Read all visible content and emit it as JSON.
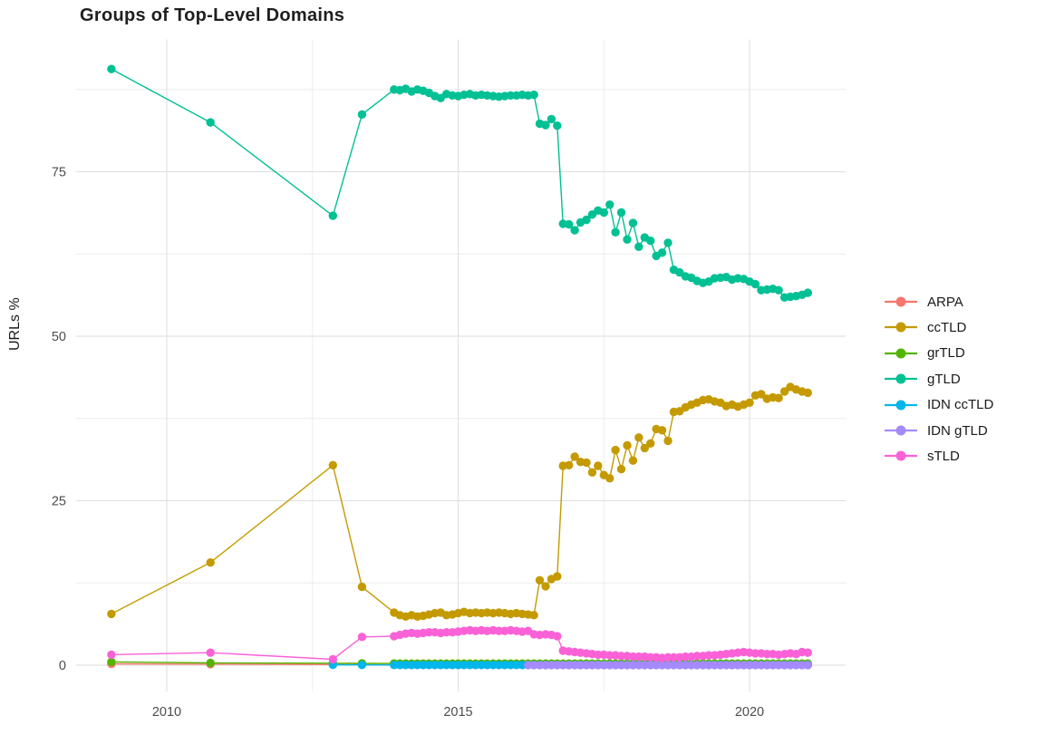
{
  "chart_data": {
    "type": "line",
    "title": "Groups of Top-Level Domains",
    "xlabel": "",
    "ylabel": "URLs %",
    "x_ticks": [
      2010,
      2015,
      2020
    ],
    "x_minor_gridlines": [
      2012.5,
      2017.5
    ],
    "y_ticks": [
      0,
      25,
      50,
      75
    ],
    "y_minor_gridlines": [
      12.5,
      37.5,
      62.5,
      87.5
    ],
    "xlim": [
      2008.45,
      2021.65
    ],
    "ylim": [
      -4.5,
      95.1
    ],
    "grid": true,
    "legend_position": "right",
    "grid_major_color": "#e2e2e2",
    "grid_minor_color": "#ececec",
    "x_dense": [
      2014.0,
      2014.1,
      2014.2,
      2014.3,
      2014.4,
      2014.5,
      2014.6,
      2014.7,
      2014.8,
      2014.9,
      2015.0,
      2015.1,
      2015.2,
      2015.3,
      2015.4,
      2015.5,
      2015.6,
      2015.7,
      2015.8,
      2015.9,
      2016.0,
      2016.1,
      2016.2,
      2016.3,
      2016.4,
      2016.5,
      2016.6,
      2016.7,
      2016.8,
      2016.9,
      2017.0,
      2017.1,
      2017.2,
      2017.3,
      2017.4,
      2017.5,
      2017.6,
      2017.7,
      2017.8,
      2017.9,
      2018.0,
      2018.1,
      2018.2,
      2018.3,
      2018.4,
      2018.5,
      2018.6,
      2018.7,
      2018.8,
      2018.9,
      2019.0,
      2019.1,
      2019.2,
      2019.3,
      2019.4,
      2019.5,
      2019.6,
      2019.7,
      2019.8,
      2019.9,
      2020.0,
      2020.1,
      2020.2,
      2020.3,
      2020.4,
      2020.5,
      2020.6,
      2020.7,
      2020.8,
      2020.9,
      2021.0
    ],
    "series": [
      {
        "name": "ARPA",
        "color": "#F8766D",
        "x_early": [
          2009.05,
          2010.75,
          2012.85
        ],
        "y_early": [
          0.2,
          0.15,
          0.1
        ],
        "dense_start": 0,
        "y_const": 0.05
      },
      {
        "name": "ccTLD",
        "color": "#C49A00",
        "x_early": [
          2009.05,
          2010.75,
          2012.85,
          2013.35,
          2013.9
        ],
        "y_early": [
          7.8,
          15.6,
          30.4,
          11.9,
          8.0
        ],
        "dense_start": 0,
        "y_dense": [
          7.6,
          7.4,
          7.6,
          7.4,
          7.5,
          7.7,
          7.9,
          8.0,
          7.6,
          7.7,
          7.9,
          8.1,
          7.9,
          8.0,
          7.9,
          8.0,
          7.9,
          8.0,
          7.9,
          7.8,
          7.9,
          7.8,
          7.7,
          7.6,
          12.9,
          12.0,
          13.1,
          13.5,
          30.3,
          30.4,
          31.7,
          30.9,
          30.8,
          29.3,
          30.3,
          28.9,
          28.4,
          32.7,
          29.8,
          33.4,
          31.1,
          34.6,
          33.0,
          33.7,
          35.9,
          35.7,
          34.1,
          38.5,
          38.6,
          39.2,
          39.6,
          39.9,
          40.3,
          40.4,
          40.1,
          39.9,
          39.4,
          39.6,
          39.3,
          39.6,
          39.9,
          41.0,
          41.2,
          40.5,
          40.7,
          40.6,
          41.6,
          42.3,
          41.9,
          41.6,
          41.4
        ]
      },
      {
        "name": "grTLD",
        "color": "#53B400",
        "x_early": [
          2009.05,
          2010.75,
          2012.85,
          2013.35,
          2013.9
        ],
        "y_early": [
          0.5,
          0.35,
          0.3,
          0.28,
          0.26
        ],
        "dense_start": 0,
        "y_const": 0.25
      },
      {
        "name": "gTLD",
        "color": "#00C094",
        "x_early": [
          2009.05,
          2010.75,
          2012.85,
          2013.35,
          2013.9
        ],
        "y_early": [
          90.6,
          82.5,
          68.3,
          83.7,
          87.5
        ],
        "dense_start": 0,
        "y_dense": [
          87.4,
          87.6,
          87.2,
          87.5,
          87.3,
          87.0,
          86.5,
          86.2,
          86.8,
          86.6,
          86.5,
          86.7,
          86.8,
          86.6,
          86.7,
          86.6,
          86.5,
          86.4,
          86.5,
          86.6,
          86.6,
          86.7,
          86.6,
          86.7,
          82.3,
          82.1,
          83.0,
          82.0,
          67.1,
          67.0,
          66.1,
          67.3,
          67.7,
          68.5,
          69.1,
          68.8,
          70.0,
          65.8,
          68.8,
          64.7,
          67.2,
          63.6,
          65.0,
          64.5,
          62.2,
          62.7,
          64.2,
          60.1,
          59.7,
          59.1,
          58.9,
          58.4,
          58.1,
          58.3,
          58.8,
          58.9,
          59.0,
          58.6,
          58.8,
          58.7,
          58.3,
          57.9,
          57.0,
          57.1,
          57.2,
          57.0,
          55.9,
          56.0,
          56.1,
          56.3,
          56.6
        ]
      },
      {
        "name": "IDN ccTLD",
        "color": "#00B6EB",
        "x_early": [
          2012.85,
          2013.35,
          2013.9
        ],
        "y_early": [
          0.05,
          0.04,
          0.03
        ],
        "dense_start": 0,
        "y_const": 0.03
      },
      {
        "name": "IDN gTLD",
        "color": "#A58AFF",
        "x_early": [],
        "y_early": [],
        "dense_start": 22,
        "y_const": 0.02
      },
      {
        "name": "sTLD",
        "color": "#FB61D7",
        "x_early": [
          2009.05,
          2010.75,
          2012.85,
          2013.35,
          2013.9
        ],
        "y_early": [
          1.6,
          1.9,
          0.9,
          4.3,
          4.4
        ],
        "dense_start": 0,
        "y_dense": [
          4.6,
          4.8,
          4.9,
          4.8,
          4.9,
          5.0,
          5.0,
          4.9,
          5.0,
          5.0,
          5.1,
          5.2,
          5.3,
          5.2,
          5.3,
          5.2,
          5.3,
          5.2,
          5.2,
          5.3,
          5.2,
          5.1,
          5.2,
          4.7,
          4.6,
          4.7,
          4.6,
          4.4,
          2.2,
          2.1,
          2.0,
          1.9,
          1.8,
          1.7,
          1.6,
          1.6,
          1.5,
          1.5,
          1.4,
          1.4,
          1.3,
          1.3,
          1.3,
          1.2,
          1.2,
          1.1,
          1.2,
          1.2,
          1.2,
          1.3,
          1.3,
          1.4,
          1.4,
          1.5,
          1.5,
          1.6,
          1.7,
          1.8,
          1.9,
          2.0,
          1.9,
          1.8,
          1.8,
          1.7,
          1.7,
          1.6,
          1.7,
          1.8,
          1.7,
          2.0,
          1.9
        ]
      }
    ]
  }
}
